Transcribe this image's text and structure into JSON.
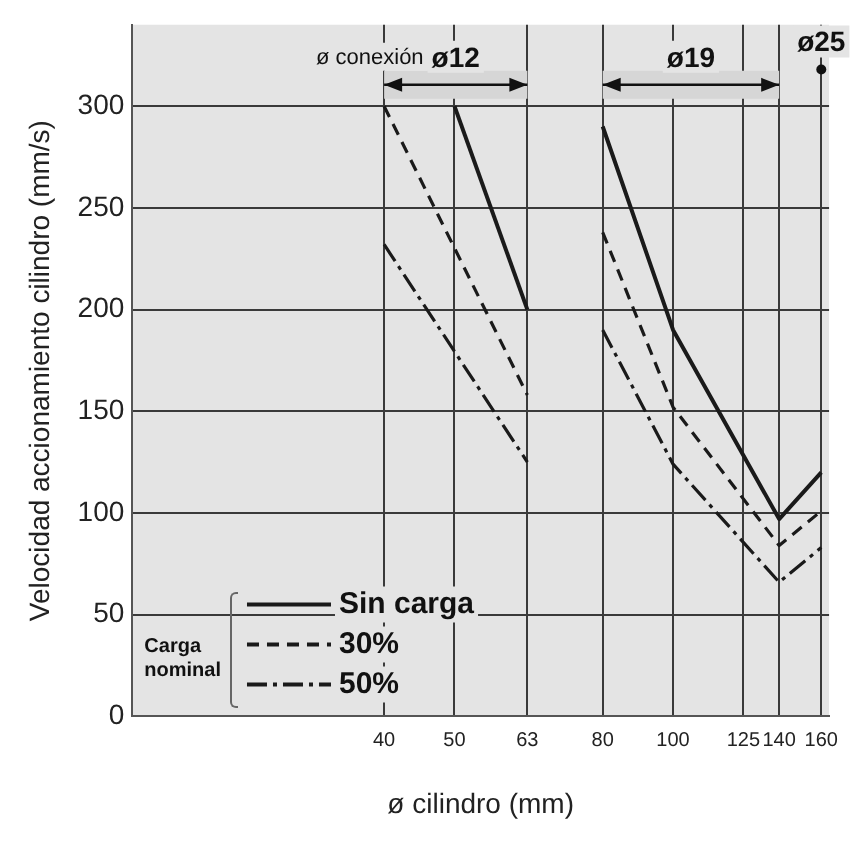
{
  "chart_data": {
    "type": "line",
    "xlabel": "ø cilindro (mm)",
    "ylabel": "Velocidad accionamiento cilindro (mm/s)",
    "log": "x",
    "xlim": [
      18,
      164
    ],
    "xticks": [
      40,
      50,
      63,
      80,
      100,
      125,
      140,
      160
    ],
    "ylim": [
      0,
      340
    ],
    "yticks": [
      0,
      50,
      100,
      150,
      200,
      250,
      300
    ],
    "grid": true,
    "marker": "none",
    "legend": "bottom left",
    "legend_title": "Carga nominal",
    "series": [
      {
        "name": "Sin carga",
        "color": "#1a1a1a",
        "line_style": "solid",
        "x": [
          50,
          63
        ],
        "values": [
          300,
          200
        ]
      },
      {
        "color": "#1a1a1a",
        "line_style": "solid",
        "x": [
          80,
          100,
          140,
          160
        ],
        "values": [
          290,
          190,
          97,
          120
        ]
      },
      {
        "name": "30%",
        "color": "#1a1a1a",
        "line_style": "dashed",
        "x": [
          40,
          63
        ],
        "values": [
          300,
          158
        ]
      },
      {
        "color": "#1a1a1a",
        "line_style": "dashed",
        "x": [
          80,
          100,
          140,
          160
        ],
        "values": [
          238,
          152,
          84,
          101
        ]
      },
      {
        "name": "50%",
        "color": "#1a1a1a",
        "line_style": "dashdot",
        "x": [
          40,
          63
        ],
        "values": [
          232,
          125
        ]
      },
      {
        "color": "#1a1a1a",
        "line_style": "dashdot",
        "x": [
          80,
          100,
          140,
          160
        ],
        "values": [
          190,
          124,
          66,
          83
        ]
      }
    ],
    "bands": [
      {
        "axis": "x",
        "from": 40,
        "to": 63,
        "label": "ø12",
        "color": "#d6d6d6"
      },
      {
        "axis": "x",
        "from": 80,
        "to": 140,
        "label": "ø19",
        "color": "#d6d6d6"
      }
    ],
    "annotations": [
      "ø conexión",
      {
        "text": "ø25",
        "x": 160,
        "y": 318
      }
    ]
  }
}
